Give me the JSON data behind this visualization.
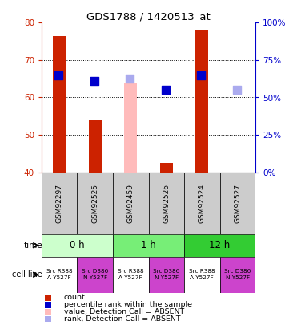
{
  "title": "GDS1788 / 1420513_at",
  "samples": [
    "GSM92297",
    "GSM92525",
    "GSM92459",
    "GSM92526",
    "GSM92524",
    "GSM92527"
  ],
  "bar_counts": [
    76.5,
    54.0,
    null,
    42.5,
    78.0,
    null
  ],
  "bar_counts_absent": [
    null,
    null,
    64.0,
    null,
    null,
    null
  ],
  "rank_values": [
    66.0,
    64.5,
    null,
    62.0,
    66.0,
    null
  ],
  "rank_values_absent": [
    null,
    null,
    65.0,
    null,
    null,
    62.0
  ],
  "bar_color_present": "#cc2200",
  "bar_color_absent": "#ffbbbb",
  "rank_color_present": "#0000cc",
  "rank_color_absent": "#aaaaee",
  "ylim_left": [
    40,
    80
  ],
  "ylim_right": [
    0,
    100
  ],
  "yticks_left": [
    40,
    50,
    60,
    70,
    80
  ],
  "yticks_right": [
    0,
    25,
    50,
    75,
    100
  ],
  "ytick_labels_right": [
    "0%",
    "25%",
    "50%",
    "75%",
    "100%"
  ],
  "time_groups": [
    {
      "label": "0 h",
      "cols": [
        0,
        1
      ],
      "color": "#ccffcc"
    },
    {
      "label": "1 h",
      "cols": [
        2,
        3
      ],
      "color": "#77ee77"
    },
    {
      "label": "12 h",
      "cols": [
        4,
        5
      ],
      "color": "#33cc33"
    }
  ],
  "cell_lines": [
    {
      "label": "Src R388\nA Y527F",
      "color": "#ffffff"
    },
    {
      "label": "Src D386\nN Y527F",
      "color": "#cc44cc"
    },
    {
      "label": "Src R388\nA Y527F",
      "color": "#ffffff"
    },
    {
      "label": "Src D386\nN Y527F",
      "color": "#cc44cc"
    },
    {
      "label": "Src R388\nA Y527F",
      "color": "#ffffff"
    },
    {
      "label": "Src D386\nN Y527F",
      "color": "#cc44cc"
    }
  ],
  "legend_items": [
    {
      "label": "count",
      "color": "#cc2200"
    },
    {
      "label": "percentile rank within the sample",
      "color": "#0000cc"
    },
    {
      "label": "value, Detection Call = ABSENT",
      "color": "#ffbbbb"
    },
    {
      "label": "rank, Detection Call = ABSENT",
      "color": "#aaaaee"
    }
  ],
  "axis_left_color": "#cc2200",
  "axis_right_color": "#0000cc",
  "bar_width": 0.35,
  "rank_marker_size": 55,
  "sample_box_color": "#cccccc",
  "grid_color": "#000000",
  "grid_linestyle": ":",
  "grid_linewidth": 0.7
}
